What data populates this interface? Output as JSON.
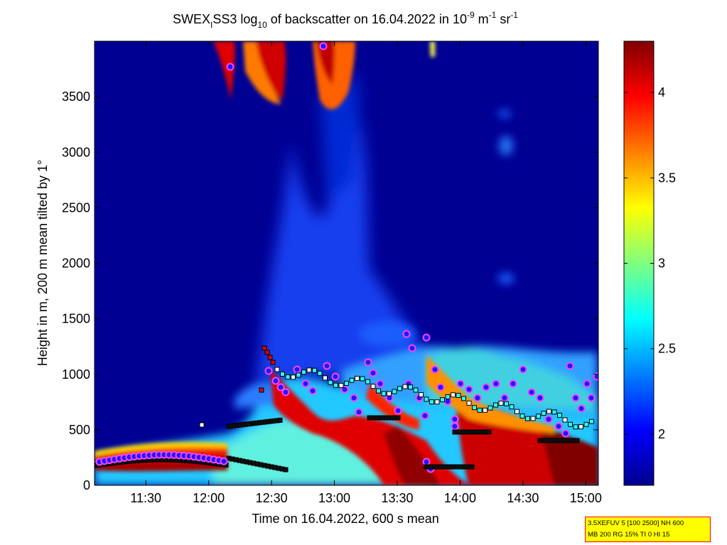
{
  "chart_data": {
    "type": "heatmap",
    "title": {
      "pre": "SWEX",
      "sub1": "I",
      "mid": "SS3 log",
      "sub2": "10",
      "post": " of backscatter on 16.04.2022 in 10",
      "exp1": "-9",
      "unit1": " m",
      "exp2": "-1",
      "unit2": " sr",
      "exp3": "-1"
    },
    "xlabel": "Time on 16.04.2022, 600 s mean",
    "ylabel": "Height in m, 200 m mean tilted by 1°",
    "x_ticks": [
      "11:30",
      "12:00",
      "12:30",
      "13:00",
      "13:30",
      "14:00",
      "14:30",
      "15:00"
    ],
    "y_ticks": [
      "0",
      "500",
      "1000",
      "1500",
      "2000",
      "2500",
      "3000",
      "3500"
    ],
    "colorbar_ticks": [
      "2",
      "2.5",
      "3",
      "3.5",
      "4"
    ],
    "colorbar_range": [
      1.7,
      4.3
    ],
    "colormap": "jet",
    "background_value": 1.75,
    "info_lines": [
      "3.5XEFUV 5 [100 2500] NH 600",
      "MB 200 RG 15% TI 0 HI 15"
    ]
  }
}
